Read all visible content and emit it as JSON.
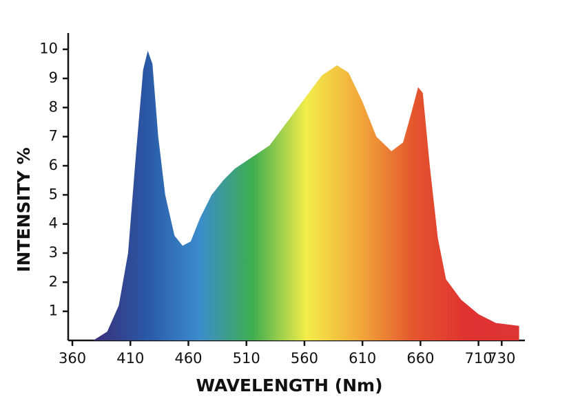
{
  "chart_data": {
    "type": "area",
    "xlabel": "WAVELENGTH (Nm)",
    "ylabel": "INTENSITY %",
    "x": [
      378,
      390,
      400,
      408,
      415,
      421,
      425,
      429,
      434,
      440,
      448,
      455,
      462,
      470,
      480,
      490,
      500,
      515,
      530,
      545,
      560,
      575,
      588,
      598,
      610,
      622,
      635,
      645,
      652,
      658,
      662,
      668,
      675,
      682,
      695,
      710,
      725,
      745
    ],
    "values": [
      0,
      0.3,
      1.2,
      3,
      6.5,
      9.3,
      9.95,
      9.5,
      7,
      5,
      3.6,
      3.25,
      3.4,
      4.2,
      5,
      5.5,
      5.9,
      6.3,
      6.7,
      7.5,
      8.3,
      9.1,
      9.45,
      9.2,
      8.2,
      7.0,
      6.5,
      6.8,
      7.8,
      8.7,
      8.5,
      6,
      3.5,
      2.1,
      1.4,
      0.9,
      0.6,
      0.5
    ],
    "colors": [
      "#3b2f7a",
      "#2a58a6",
      "#3b8ccc",
      "#3fae4f",
      "#f3ec4a",
      "#f2a93a",
      "#e4572e",
      "#e03231",
      "#dd3434"
    ],
    "xlim": [
      357,
      750
    ],
    "ylim": [
      0,
      10.56
    ],
    "xticks": [
      360,
      410,
      460,
      510,
      560,
      610,
      660,
      710,
      730
    ],
    "yticks": [
      1,
      2,
      3,
      4,
      5,
      6,
      7,
      8,
      9,
      10
    ]
  }
}
